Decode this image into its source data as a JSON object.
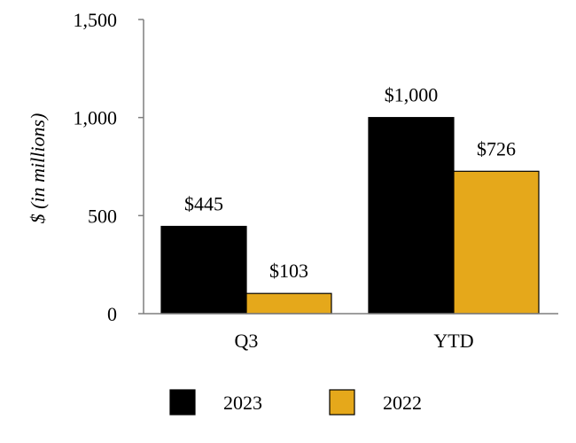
{
  "chart_data": {
    "type": "bar",
    "title": "",
    "xlabel": "",
    "ylabel": "$ (in millions)",
    "ylim": [
      0,
      1500
    ],
    "yticks": [
      0,
      500,
      1000,
      1500
    ],
    "ytick_labels": [
      "0",
      "500",
      "1,000",
      "1,500"
    ],
    "categories": [
      "Q3",
      "YTD"
    ],
    "series": [
      {
        "name": "2023",
        "color": "#000000",
        "values": [
          445,
          1000
        ],
        "labels": [
          "$445",
          "$1,000"
        ]
      },
      {
        "name": "2022",
        "color": "#E5A81B",
        "values": [
          103,
          726
        ],
        "labels": [
          "$103",
          "$726"
        ]
      }
    ],
    "grid": false,
    "legend": "bottom"
  }
}
